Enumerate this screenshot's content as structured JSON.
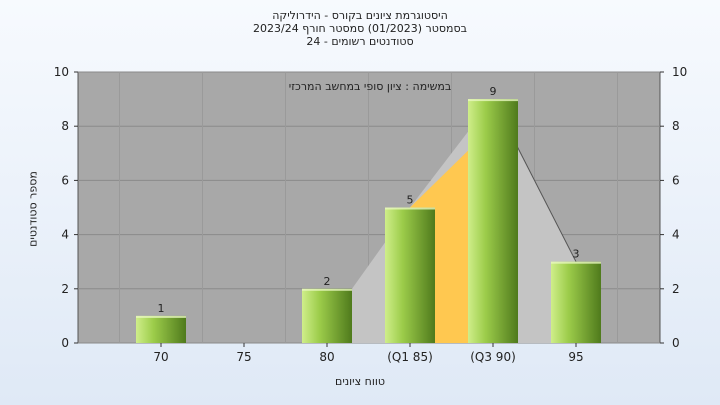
{
  "chart_data": {
    "type": "bar",
    "title_lines": [
      "היסטוגרמת ציונים בקורס - הידרוליקה",
      "בסמסטר  (01/2023)  סמסטר חורף  2023/24",
      "סטודנטים רשומים - 24"
    ],
    "annotation": "במשימה : ציון סופי במחשב המרכזי",
    "xlabel": "טווח ציונים",
    "ylabel": "מספר סטודנטים",
    "categories": [
      "70",
      "75",
      "80",
      "(Q1 85)",
      "(Q3 90)",
      "95"
    ],
    "values": [
      1,
      0,
      2,
      5,
      9,
      3
    ],
    "value_labels": [
      "1",
      "",
      "2",
      "5",
      "9",
      "3"
    ],
    "ylim": [
      0,
      10
    ],
    "yticks": [
      "0",
      "2",
      "4",
      "6",
      "8",
      "10"
    ],
    "grid": true,
    "colors": {
      "plot_bg": "#a8a8a8",
      "bar_light": "#cfee8a",
      "bar_mid": "#9ccc4a",
      "bar_dark": "#4f7a1c",
      "quartile_fill": "#ffc850",
      "distribution_fill": "#c4c4c4"
    }
  }
}
